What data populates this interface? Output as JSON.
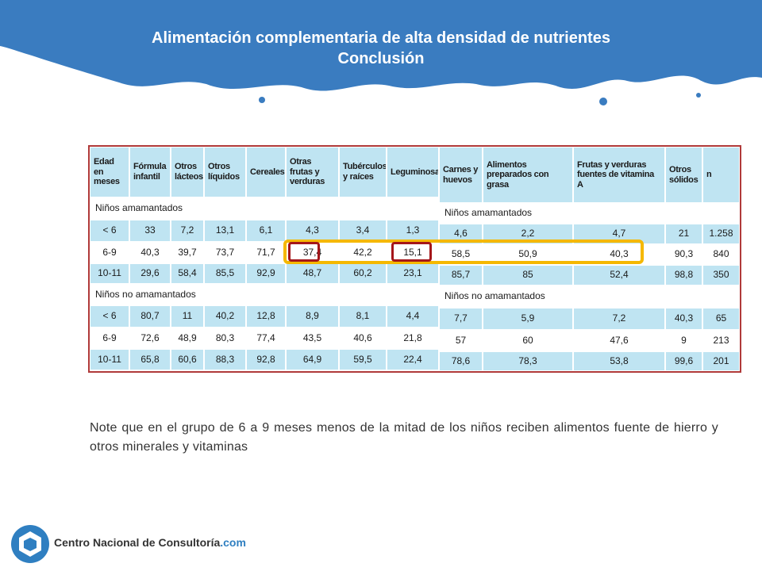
{
  "header": {
    "title": "Alimentación complementaria de alta densidad de nutrientes",
    "subtitle": "Conclusión"
  },
  "table": {
    "headers": [
      "Edad en meses",
      "Fórmula infantil",
      "Otros lácteos",
      "Otros líquidos",
      "Cereales",
      "Otras frutas y verduras",
      "Tubérculos y raíces",
      "Leguminosas",
      "Carnes y huevos",
      "Alimentos preparados con grasa",
      "Frutas y verduras fuentes de vitamina A",
      "Otros sólidos",
      "n"
    ],
    "sections": [
      {
        "title": "Niños amamantados",
        "rows": [
          [
            "< 6",
            "33",
            "7,2",
            "13,1",
            "6,1",
            "4,3",
            "3,4",
            "1,3",
            "4,6",
            "2,2",
            "4,7",
            "21",
            "1.258"
          ],
          [
            "6-9",
            "40,3",
            "39,7",
            "73,7",
            "71,7",
            "37,4",
            "42,2",
            "15,1",
            "58,5",
            "50,9",
            "40,3",
            "90,3",
            "840"
          ],
          [
            "10-11",
            "29,6",
            "58,4",
            "85,5",
            "92,9",
            "48,7",
            "60,2",
            "23,1",
            "85,7",
            "85",
            "52,4",
            "98,8",
            "350"
          ]
        ]
      },
      {
        "title": "Niños no amamantados",
        "rows": [
          [
            "< 6",
            "80,7",
            "11",
            "40,2",
            "12,8",
            "8,9",
            "8,1",
            "4,4",
            "7,7",
            "5,9",
            "7,2",
            "40,3",
            "65"
          ],
          [
            "6-9",
            "72,6",
            "48,9",
            "80,3",
            "77,4",
            "43,5",
            "40,6",
            "21,8",
            "57",
            "60",
            "47,6",
            "9",
            "213"
          ],
          [
            "10-11",
            "65,8",
            "60,6",
            "88,3",
            "92,8",
            "64,9",
            "59,5",
            "22,4",
            "78,6",
            "78,3",
            "53,8",
            "99,6",
            "201"
          ]
        ]
      }
    ]
  },
  "note": "Note que en el grupo de 6 a 9 meses menos de la mitad de los niños reciben alimentos fuente de hierro y otros minerales y vitaminas",
  "logo": {
    "name": "Centro Nacional de Consultoría",
    "suffix": ".com"
  }
}
